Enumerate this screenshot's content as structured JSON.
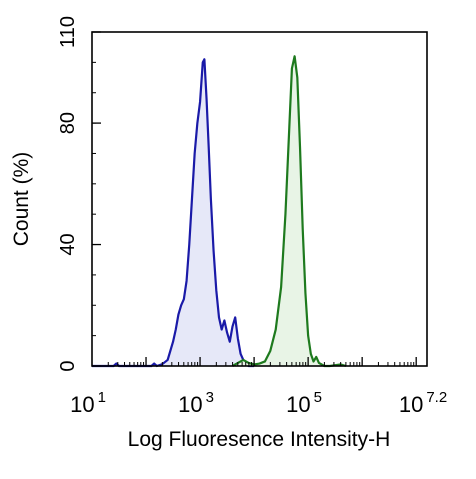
{
  "chart_data": {
    "type": "area",
    "xlabel": "Log Fluoresence Intensity-H",
    "ylabel": "Count  (%)",
    "xscale": "log10",
    "xlim": [
      1,
      7.2
    ],
    "ylim": [
      0,
      110
    ],
    "grid": false,
    "y_ticks": [
      {
        "value": 0,
        "label": "0"
      },
      {
        "value": 40,
        "label": "40"
      },
      {
        "value": 80,
        "label": "80"
      },
      {
        "value": 110,
        "label": "110"
      }
    ],
    "x_ticks": [
      {
        "value": 1,
        "base": "10",
        "exp": "1"
      },
      {
        "value": 3,
        "base": "10",
        "exp": "3"
      },
      {
        "value": 5,
        "base": "10",
        "exp": "5"
      },
      {
        "value": 7.2,
        "base": "10",
        "exp": "7.2"
      }
    ],
    "series": [
      {
        "color": "#1a1aa8",
        "fill": "#e6e8f8",
        "points": [
          [
            1.0,
            0
          ],
          [
            1.4,
            0
          ],
          [
            1.45,
            0.8
          ],
          [
            1.5,
            0
          ],
          [
            1.8,
            0
          ],
          [
            2.1,
            0
          ],
          [
            2.15,
            0.8
          ],
          [
            2.2,
            0
          ],
          [
            2.3,
            0.6
          ],
          [
            2.4,
            2
          ],
          [
            2.45,
            5
          ],
          [
            2.5,
            8
          ],
          [
            2.55,
            12
          ],
          [
            2.6,
            17
          ],
          [
            2.65,
            20
          ],
          [
            2.7,
            22
          ],
          [
            2.75,
            28
          ],
          [
            2.8,
            40
          ],
          [
            2.85,
            55
          ],
          [
            2.9,
            70
          ],
          [
            2.95,
            80
          ],
          [
            3.0,
            87
          ],
          [
            3.05,
            100
          ],
          [
            3.08,
            101
          ],
          [
            3.12,
            88
          ],
          [
            3.16,
            72
          ],
          [
            3.2,
            55
          ],
          [
            3.25,
            38
          ],
          [
            3.3,
            25
          ],
          [
            3.35,
            16
          ],
          [
            3.4,
            12
          ],
          [
            3.45,
            15
          ],
          [
            3.5,
            11
          ],
          [
            3.55,
            8
          ],
          [
            3.6,
            13
          ],
          [
            3.65,
            16
          ],
          [
            3.7,
            9
          ],
          [
            3.75,
            4
          ],
          [
            3.8,
            2
          ],
          [
            3.85,
            0.5
          ],
          [
            3.9,
            0
          ],
          [
            4.0,
            0
          ]
        ]
      },
      {
        "color": "#1e7a1e",
        "fill": "#e8f4e6",
        "points": [
          [
            3.6,
            0
          ],
          [
            3.7,
            1
          ],
          [
            3.8,
            2
          ],
          [
            3.9,
            1
          ],
          [
            4.0,
            0.5
          ],
          [
            4.1,
            0.8
          ],
          [
            4.2,
            1.5
          ],
          [
            4.3,
            5
          ],
          [
            4.4,
            12
          ],
          [
            4.5,
            26
          ],
          [
            4.58,
            50
          ],
          [
            4.65,
            78
          ],
          [
            4.7,
            98
          ],
          [
            4.75,
            102
          ],
          [
            4.8,
            95
          ],
          [
            4.85,
            72
          ],
          [
            4.9,
            45
          ],
          [
            4.95,
            24
          ],
          [
            5.0,
            10
          ],
          [
            5.05,
            4
          ],
          [
            5.1,
            1.5
          ],
          [
            5.15,
            3
          ],
          [
            5.2,
            1
          ],
          [
            5.3,
            0
          ],
          [
            5.4,
            0
          ],
          [
            5.6,
            0.5
          ],
          [
            5.7,
            0
          ]
        ]
      }
    ]
  }
}
